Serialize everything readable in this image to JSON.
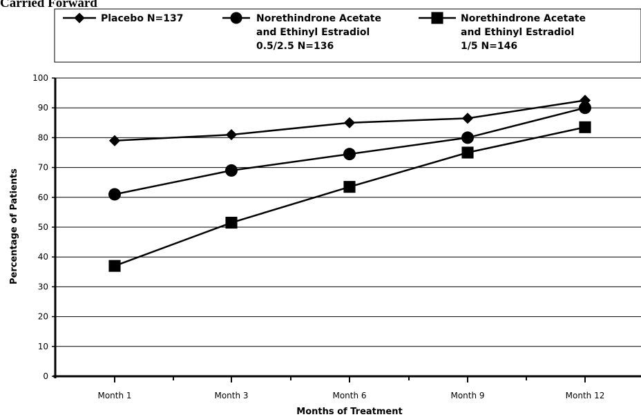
{
  "caption": "Carried Forward",
  "chart_data": {
    "type": "line",
    "title": "",
    "xlabel": "Months of Treatment",
    "ylabel": "Percentage of Patients",
    "ylim": [
      0,
      100
    ],
    "yticks": [
      0,
      10,
      20,
      30,
      40,
      50,
      60,
      70,
      80,
      90,
      100
    ],
    "categories": [
      "Month 1",
      "Month 3",
      "Month 6",
      "Month 9",
      "Month 12"
    ],
    "grid": "horizontal",
    "legend_position": "top",
    "series": [
      {
        "name_lines": [
          "Placebo N=137"
        ],
        "marker": "diamond",
        "values": [
          79,
          81,
          85,
          86.5,
          92.5
        ]
      },
      {
        "name_lines": [
          "Norethindrone Acetate",
          "and Ethinyl Estradiol",
          "0.5/2.5 N=136"
        ],
        "marker": "circle",
        "values": [
          61,
          69,
          74.5,
          80,
          90
        ]
      },
      {
        "name_lines": [
          "Norethindrone Acetate",
          "and Ethinyl Estradiol",
          "1/5 N=146"
        ],
        "marker": "square",
        "values": [
          37,
          51.5,
          63.5,
          75,
          83.5
        ]
      }
    ]
  }
}
